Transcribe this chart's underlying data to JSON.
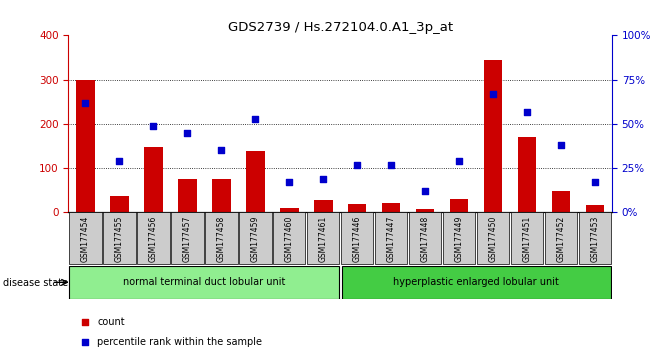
{
  "title": "GDS2739 / Hs.272104.0.A1_3p_at",
  "samples": [
    "GSM177454",
    "GSM177455",
    "GSM177456",
    "GSM177457",
    "GSM177458",
    "GSM177459",
    "GSM177460",
    "GSM177461",
    "GSM177446",
    "GSM177447",
    "GSM177448",
    "GSM177449",
    "GSM177450",
    "GSM177451",
    "GSM177452",
    "GSM177453"
  ],
  "counts": [
    300,
    37,
    148,
    75,
    75,
    138,
    10,
    27,
    18,
    22,
    8,
    30,
    345,
    170,
    48,
    17
  ],
  "percentiles": [
    62,
    29,
    49,
    45,
    35,
    53,
    17,
    19,
    27,
    27,
    12,
    29,
    67,
    57,
    38,
    17
  ],
  "group1_label": "normal terminal duct lobular unit",
  "group2_label": "hyperplastic enlarged lobular unit",
  "group1_count": 8,
  "group2_count": 8,
  "disease_state_label": "disease state",
  "ylim_left": [
    0,
    400
  ],
  "ylim_right": [
    0,
    100
  ],
  "yticks_left": [
    0,
    100,
    200,
    300,
    400
  ],
  "ytick_labels_right": [
    "0%",
    "25%",
    "50%",
    "75%",
    "100%"
  ],
  "bar_color": "#cc0000",
  "dot_color": "#0000cc",
  "group1_color": "#90ee90",
  "group2_color": "#44cc44",
  "tick_bg_color": "#cccccc",
  "legend_count_color": "#cc0000",
  "legend_pct_color": "#0000cc",
  "grid_lines": [
    100,
    200,
    300
  ]
}
